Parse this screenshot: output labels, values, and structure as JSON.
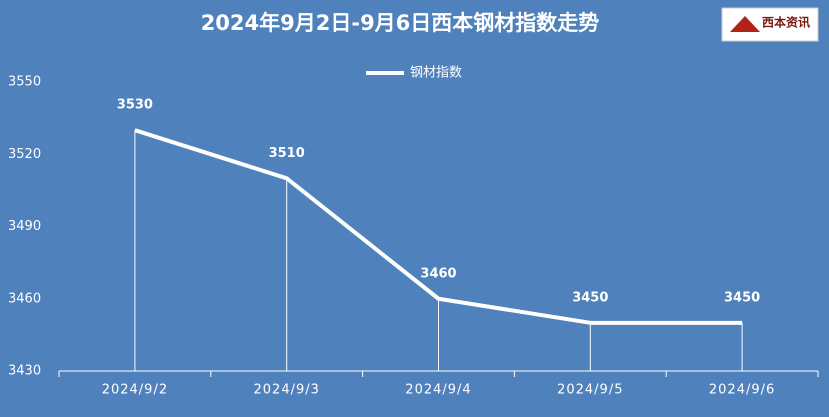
{
  "chart_data": {
    "type": "line",
    "title": "2024年9月2日-9月6日西本钢材指数走势",
    "logo": "西本资讯",
    "categories": [
      "2024/9/2",
      "2024/9/3",
      "2024/9/4",
      "2024/9/5",
      "2024/9/6"
    ],
    "series": [
      {
        "name": "钢材指数",
        "color": "#ffffff",
        "values": [
          3530,
          3510,
          3460,
          3450,
          3450
        ]
      }
    ],
    "ylim": [
      3430,
      3550
    ],
    "yticks": [
      3430,
      3460,
      3490,
      3520,
      3550
    ],
    "grid": false,
    "legend": "top"
  }
}
